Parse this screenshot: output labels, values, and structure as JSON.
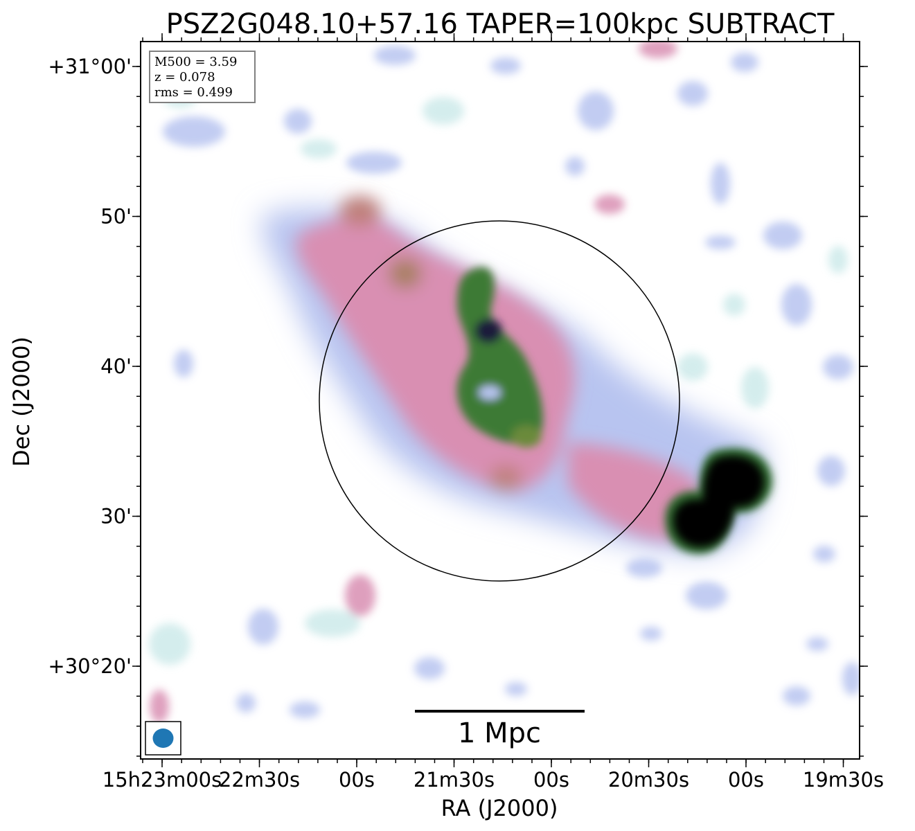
{
  "chart_data": {
    "type": "heatmap",
    "title": "PSZ2G048.10+57.16 TAPER=100kpc SUBTRACT",
    "xlabel": "RA (J2000)",
    "ylabel": "Dec (J2000)",
    "x_tick_labels": [
      "15h23m00s",
      "22m30s",
      "00s",
      "21m30s",
      "00s",
      "20m30s",
      "00s",
      "19m30s"
    ],
    "y_tick_labels": [
      "+31°00'",
      "50'",
      "40'",
      "30'",
      "+30°20'"
    ],
    "info_box": {
      "line1": "M500 = 3.59",
      "line2": "z = 0.078",
      "line3": "rms = 0.499"
    },
    "scale_bar_label": "1 Mpc",
    "colormap": [
      "#ffffff",
      "#cdeaea",
      "#b8c4f0",
      "#d98fb2",
      "#2d6a2d",
      "#1a1a3a",
      "#000000"
    ],
    "beam_color": "#1f77b4"
  }
}
